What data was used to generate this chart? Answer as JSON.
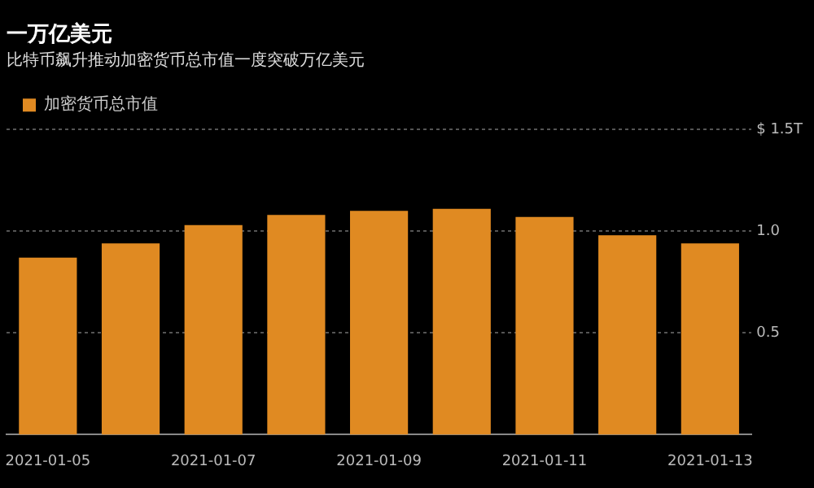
{
  "chart_data": {
    "type": "bar",
    "title": "一万亿美元",
    "subtitle": "比特币飙升推动加密货币总市值一度突破万亿美元",
    "categories": [
      "2021-01-05",
      null,
      "2021-01-07",
      null,
      "2021-01-09",
      null,
      "2021-01-11",
      null,
      "2021-01-13"
    ],
    "series": [
      {
        "name": "加密货币总市值",
        "color": "#e08a22",
        "values": [
          0.87,
          0.94,
          1.03,
          1.08,
          1.1,
          1.11,
          1.07,
          0.98,
          0.94
        ]
      }
    ],
    "ylim": [
      0,
      1.5
    ],
    "yticks": [
      {
        "value": 0.5,
        "label": "0.5"
      },
      {
        "value": 1,
        "label": "1.0"
      },
      {
        "value": 1.5,
        "label": "$ 1.5T"
      }
    ],
    "grid": "y",
    "legend": "top left"
  }
}
